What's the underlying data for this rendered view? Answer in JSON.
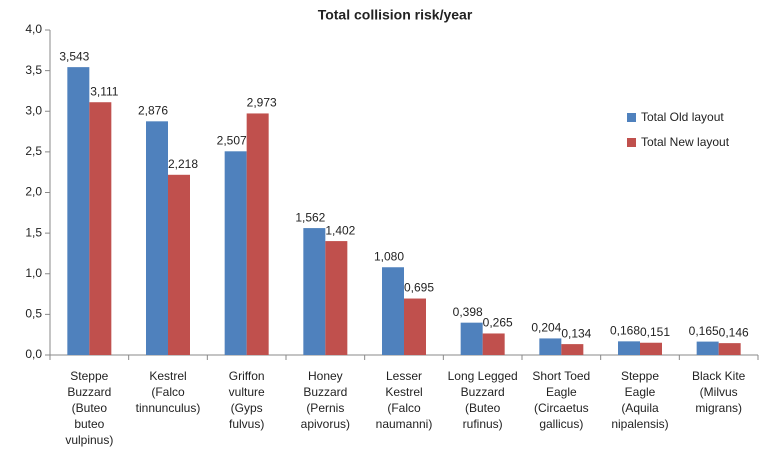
{
  "chart_data": {
    "type": "bar",
    "title": "Total collision risk/year",
    "categories": [
      "Steppe\nBuzzard\n(Buteo\nbuteo\nvulpinus)",
      "Kestrel\n(Falco\ntinnunculus)",
      "Griffon\nvulture\n(Gyps\nfulvus)",
      "Honey\nBuzzard\n(Pernis\napivorus)",
      "Lesser\nKestrel\n(Falco\nnaumanni)",
      "Long Legged\nBuzzard\n(Buteo\nrufinus)",
      "Short Toed\nEagle\n(Circaetus\ngallicus)",
      "Steppe\nEagle\n(Aquila\nnipalensis)",
      "Black Kite\n(Milvus\nmigrans)"
    ],
    "series": [
      {
        "name": "Total Old layout",
        "color": "#4f81bd",
        "values": [
          3.543,
          2.876,
          2.507,
          1.562,
          1.08,
          0.398,
          0.204,
          0.168,
          0.165
        ],
        "value_labels": [
          "3,543",
          "2,876",
          "2,507",
          "1,562",
          "1,080",
          "0,398",
          "0,204",
          "0,168",
          "0,165"
        ]
      },
      {
        "name": "Total New layout",
        "color": "#c0504d",
        "values": [
          3.111,
          2.218,
          2.973,
          1.402,
          0.695,
          0.265,
          0.134,
          0.151,
          0.146
        ],
        "value_labels": [
          "3,111",
          "2,218",
          "2,973",
          "1,402",
          "0,695",
          "0,265",
          "0,134",
          "0,151",
          "0,146"
        ]
      }
    ],
    "ylim": [
      0,
      4
    ],
    "yticks": [
      {
        "value": 0,
        "label": "0,0"
      },
      {
        "value": 0.5,
        "label": "0,5"
      },
      {
        "value": 1,
        "label": "1,0"
      },
      {
        "value": 1.5,
        "label": "1,5"
      },
      {
        "value": 2,
        "label": "2,0"
      },
      {
        "value": 2.5,
        "label": "2,5"
      },
      {
        "value": 3,
        "label": "3,0"
      },
      {
        "value": 3.5,
        "label": "3,5"
      },
      {
        "value": 4,
        "label": "4,0"
      }
    ],
    "legend": "right"
  }
}
